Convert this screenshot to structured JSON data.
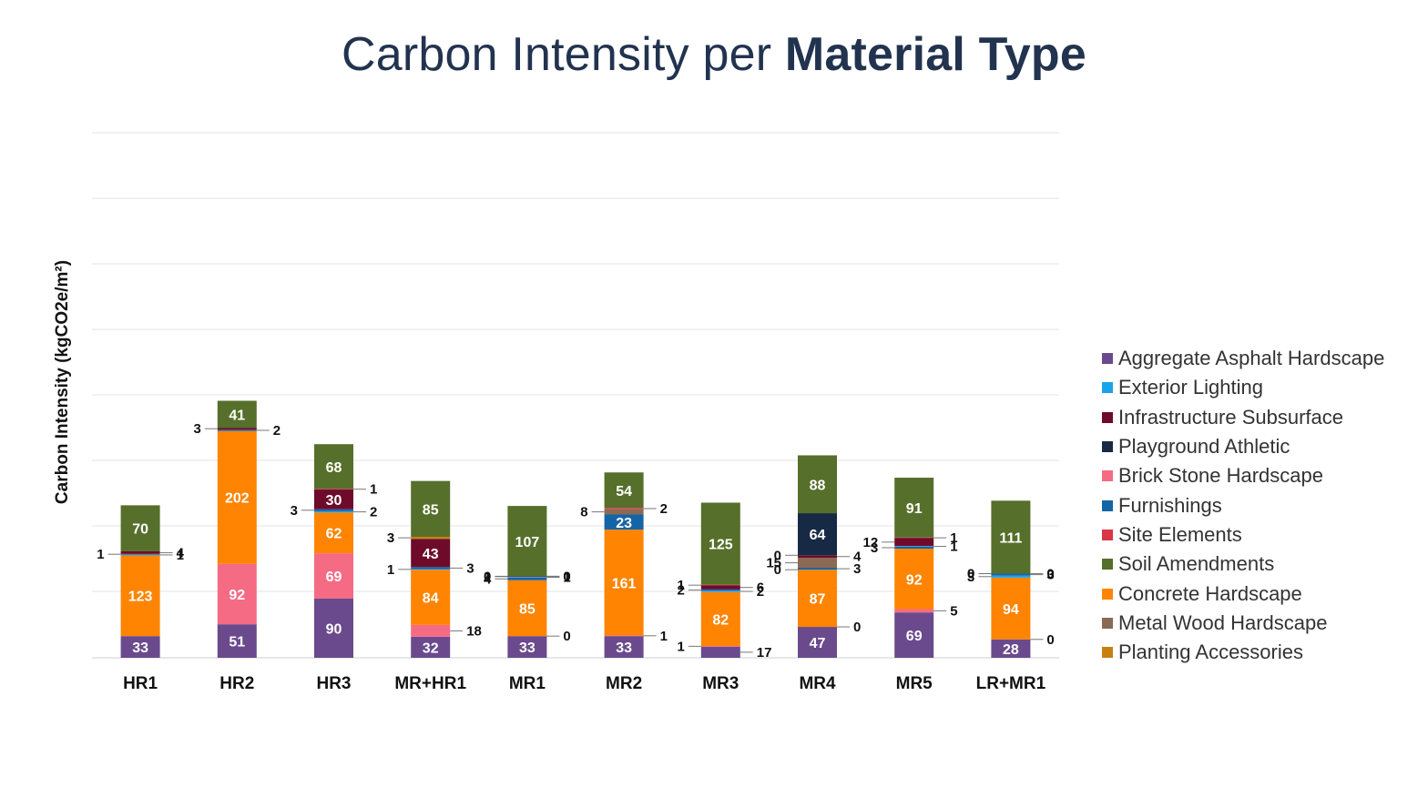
{
  "title": {
    "regular": "Carbon Intensity per ",
    "bold": "Material Type"
  },
  "colors": {
    "Aggregate Asphalt Hardscape": "#6a4a8c",
    "Exterior Lighting": "#1aa3e8",
    "Infrastructure Subsurface": "#6e0b2b",
    "Playground Athletic": "#172a45",
    "Brick Stone Hardscape": "#f56b84",
    "Furnishings": "#1464a8",
    "Site Elements": "#d93648",
    "Soil Amendments": "#566f2a",
    "Concrete Hardscape": "#ff8402",
    "Metal Wood Hardscape": "#8a6a52",
    "Planting Accessories": "#c97f10"
  },
  "legend": [
    "Aggregate Asphalt Hardscape",
    "Exterior Lighting",
    "Infrastructure Subsurface",
    "Playground Athletic",
    "Brick Stone Hardscape",
    "Furnishings",
    "Site Elements",
    "Soil Amendments",
    "Concrete Hardscape",
    "Metal Wood Hardscape",
    "Planting Accessories"
  ],
  "chart_data": {
    "type": "bar",
    "stacked": true,
    "title": "Carbon Intensity per Material Type",
    "xlabel": "",
    "ylabel": "Carbon Intensity (kgCO2e/m²)",
    "ylim": [
      0,
      400
    ],
    "grid": true,
    "legend_position": "right",
    "categories": [
      "HR1",
      "HR2",
      "HR3",
      "MR+HR1",
      "MR1",
      "MR2",
      "MR3",
      "MR4",
      "MR5",
      "LR+MR1"
    ],
    "stacks": [
      [
        {
          "series": "Aggregate Asphalt Hardscape",
          "value": 33
        },
        {
          "series": "Concrete Hardscape",
          "value": 123
        },
        {
          "series": "Furnishings",
          "value": 1
        },
        {
          "series": "Exterior Lighting",
          "value": 1
        },
        {
          "series": "Infrastructure Subsurface",
          "value": 4
        },
        {
          "series": "Soil Amendments",
          "value": 70
        }
      ],
      [
        {
          "series": "Aggregate Asphalt Hardscape",
          "value": 51
        },
        {
          "series": "Brick Stone Hardscape",
          "value": 92
        },
        {
          "series": "Concrete Hardscape",
          "value": 202
        },
        {
          "series": "Furnishings",
          "value": 2
        },
        {
          "series": "Infrastructure Subsurface",
          "value": 3
        },
        {
          "series": "Soil Amendments",
          "value": 41
        }
      ],
      [
        {
          "series": "Aggregate Asphalt Hardscape",
          "value": 90
        },
        {
          "series": "Brick Stone Hardscape",
          "value": 69
        },
        {
          "series": "Concrete Hardscape",
          "value": 62
        },
        {
          "series": "Exterior Lighting",
          "value": 2
        },
        {
          "series": "Furnishings",
          "value": 3
        },
        {
          "series": "Infrastructure Subsurface",
          "value": 30
        },
        {
          "series": "Site Elements",
          "value": 1
        },
        {
          "series": "Soil Amendments",
          "value": 68
        }
      ],
      [
        {
          "series": "Aggregate Asphalt Hardscape",
          "value": 32
        },
        {
          "series": "Brick Stone Hardscape",
          "value": 18
        },
        {
          "series": "Concrete Hardscape",
          "value": 84
        },
        {
          "series": "Exterior Lighting",
          "value": 1
        },
        {
          "series": "Furnishings",
          "value": 3
        },
        {
          "series": "Infrastructure Subsurface",
          "value": 43
        },
        {
          "series": "Planting Accessories",
          "value": 3
        },
        {
          "series": "Soil Amendments",
          "value": 85
        }
      ],
      [
        {
          "series": "Aggregate Asphalt Hardscape",
          "value": 33
        },
        {
          "series": "Brick Stone Hardscape",
          "value": 0
        },
        {
          "series": "Concrete Hardscape",
          "value": 85
        },
        {
          "series": "Furnishings",
          "value": 4
        },
        {
          "series": "Exterior Lighting",
          "value": 1
        },
        {
          "series": "Infrastructure Subsurface",
          "value": 1
        },
        {
          "series": "Site Elements",
          "value": 0
        },
        {
          "series": "Metal Wood Hardscape",
          "value": 0
        },
        {
          "series": "Playground Athletic",
          "value": 0
        },
        {
          "series": "Soil Amendments",
          "value": 107
        }
      ],
      [
        {
          "series": "Aggregate Asphalt Hardscape",
          "value": 33
        },
        {
          "series": "Brick Stone Hardscape",
          "value": 1
        },
        {
          "series": "Concrete Hardscape",
          "value": 161
        },
        {
          "series": "Furnishings",
          "value": 23
        },
        {
          "series": "Metal Wood Hardscape",
          "value": 8
        },
        {
          "series": "Site Elements",
          "value": 2
        },
        {
          "series": "Soil Amendments",
          "value": 54
        }
      ],
      [
        {
          "series": "Aggregate Asphalt Hardscape",
          "value": 17
        },
        {
          "series": "Brick Stone Hardscape",
          "value": 1
        },
        {
          "series": "Concrete Hardscape",
          "value": 82
        },
        {
          "series": "Exterior Lighting",
          "value": 2
        },
        {
          "series": "Furnishings",
          "value": 2
        },
        {
          "series": "Infrastructure Subsurface",
          "value": 6
        },
        {
          "series": "Site Elements",
          "value": 1
        },
        {
          "series": "Soil Amendments",
          "value": 125
        }
      ],
      [
        {
          "series": "Aggregate Asphalt Hardscape",
          "value": 47
        },
        {
          "series": "Brick Stone Hardscape",
          "value": 0
        },
        {
          "series": "Concrete Hardscape",
          "value": 87
        },
        {
          "series": "Exterior Lighting",
          "value": 0
        },
        {
          "series": "Furnishings",
          "value": 3
        },
        {
          "series": "Metal Wood Hardscape",
          "value": 15
        },
        {
          "series": "Infrastructure Subsurface",
          "value": 4
        },
        {
          "series": "Site Elements",
          "value": 0
        },
        {
          "series": "Playground Athletic",
          "value": 64
        },
        {
          "series": "Soil Amendments",
          "value": 88
        }
      ],
      [
        {
          "series": "Aggregate Asphalt Hardscape",
          "value": 69
        },
        {
          "series": "Brick Stone Hardscape",
          "value": 5
        },
        {
          "series": "Concrete Hardscape",
          "value": 92
        },
        {
          "series": "Furnishings",
          "value": 3
        },
        {
          "series": "Exterior Lighting",
          "value": 1
        },
        {
          "series": "Infrastructure Subsurface",
          "value": 12
        },
        {
          "series": "Site Elements",
          "value": 1
        },
        {
          "series": "Soil Amendments",
          "value": 91
        }
      ],
      [
        {
          "series": "Aggregate Asphalt Hardscape",
          "value": 28
        },
        {
          "series": "Brick Stone Hardscape",
          "value": 0
        },
        {
          "series": "Concrete Hardscape",
          "value": 94
        },
        {
          "series": "Exterior Lighting",
          "value": 3
        },
        {
          "series": "Furnishings",
          "value": 3
        },
        {
          "series": "Infrastructure Subsurface",
          "value": 0
        },
        {
          "series": "Site Elements",
          "value": 0
        },
        {
          "series": "Metal Wood Hardscape",
          "value": 0
        },
        {
          "series": "Soil Amendments",
          "value": 111
        }
      ]
    ]
  }
}
